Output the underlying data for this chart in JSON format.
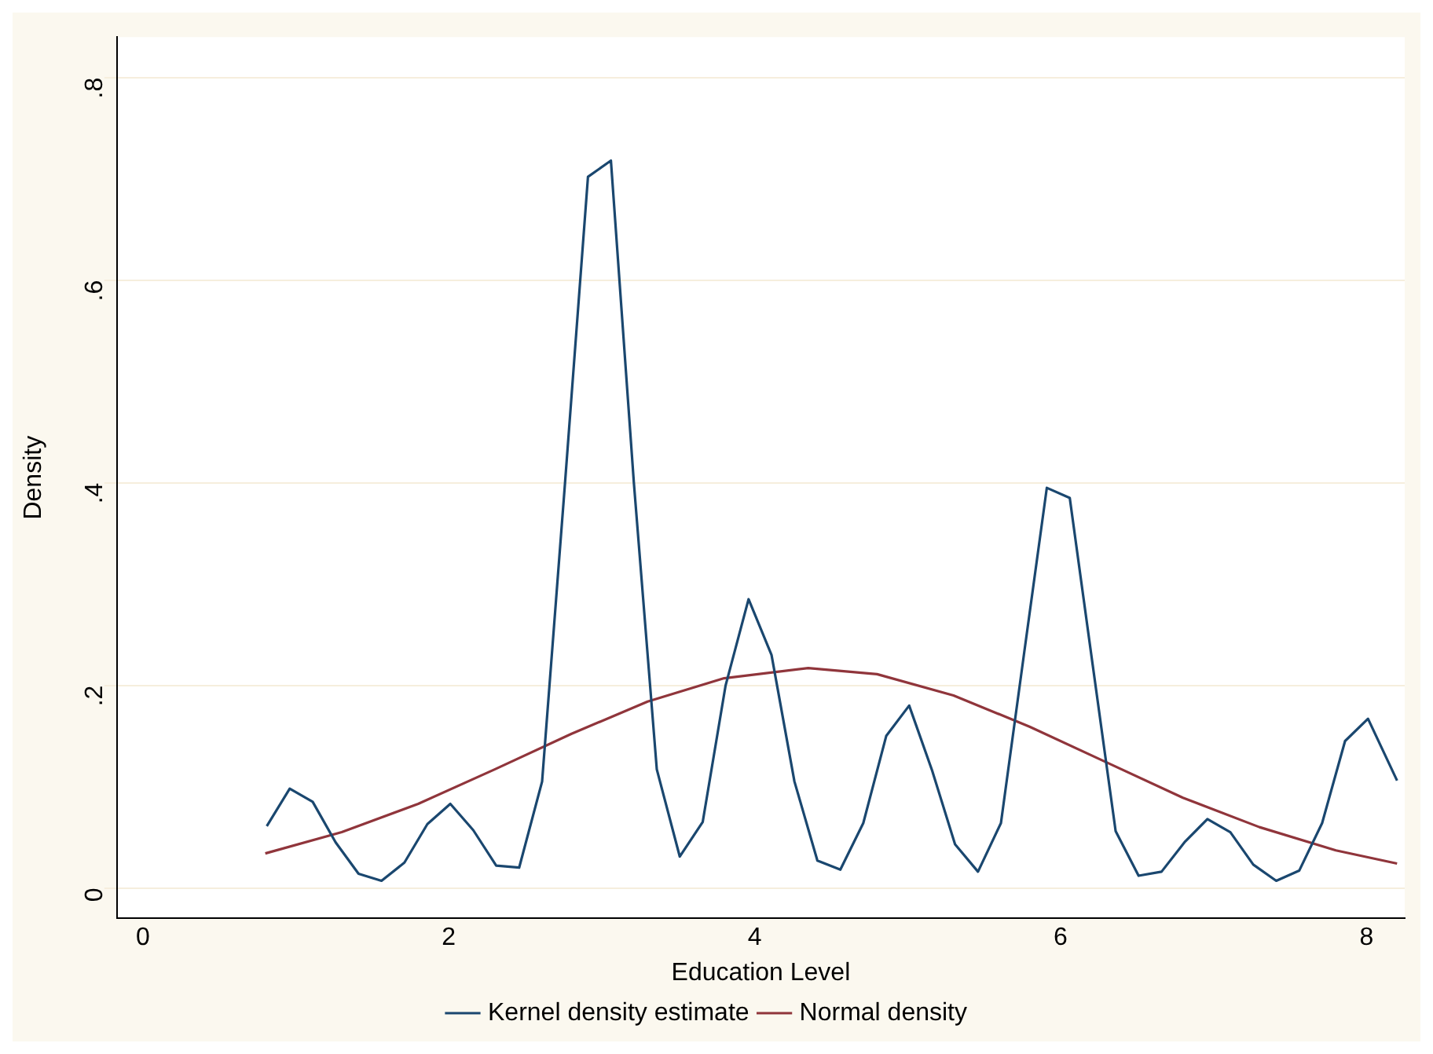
{
  "chart_data": {
    "type": "line",
    "xlabel": "Education Level",
    "ylabel": "Density",
    "xlim": [
      -0.17,
      8.25
    ],
    "xticks": [
      0,
      2,
      4,
      6,
      8
    ],
    "ylim": [
      -0.03,
      0.84
    ],
    "yticks": [
      {
        "value": 0,
        "label": "0"
      },
      {
        "value": 0.2,
        "label": ".2"
      },
      {
        "value": 0.4,
        "label": ".4"
      },
      {
        "value": 0.6,
        "label": ".6"
      },
      {
        "value": 0.8,
        "label": ".8"
      }
    ],
    "grid": "y",
    "legend": "bottom",
    "marker": "none",
    "line_style": "solid",
    "series": [
      {
        "name": "Kernel density estimate",
        "color": "#1a476f",
        "x": [
          0.81,
          0.96,
          1.11,
          1.26,
          1.41,
          1.56,
          1.71,
          1.86,
          2.01,
          2.16,
          2.31,
          2.46,
          2.61,
          2.76,
          2.91,
          3.06,
          3.21,
          3.36,
          3.51,
          3.66,
          3.81,
          3.96,
          4.11,
          4.26,
          4.41,
          4.56,
          4.71,
          4.86,
          5.01,
          5.16,
          5.31,
          5.46,
          5.61,
          5.76,
          5.91,
          6.06,
          6.21,
          6.36,
          6.51,
          6.66,
          6.81,
          6.96,
          7.11,
          7.26,
          7.41,
          7.56,
          7.71,
          7.86,
          8.01,
          8.2
        ],
        "values": [
          0.061,
          0.098,
          0.085,
          0.045,
          0.014,
          0.007,
          0.025,
          0.063,
          0.083,
          0.057,
          0.022,
          0.02,
          0.105,
          0.4,
          0.702,
          0.718,
          0.4,
          0.117,
          0.031,
          0.065,
          0.2,
          0.285,
          0.23,
          0.105,
          0.027,
          0.018,
          0.064,
          0.15,
          0.18,
          0.116,
          0.043,
          0.016,
          0.064,
          0.23,
          0.395,
          0.385,
          0.22,
          0.056,
          0.012,
          0.016,
          0.045,
          0.068,
          0.055,
          0.023,
          0.007,
          0.017,
          0.064,
          0.145,
          0.167,
          0.106
        ]
      },
      {
        "name": "Normal density",
        "color": "#90353b",
        "x": [
          0.8,
          1.3,
          1.8,
          2.3,
          2.8,
          3.3,
          3.8,
          4.35,
          4.8,
          5.3,
          5.8,
          6.3,
          6.8,
          7.3,
          7.8,
          8.2
        ],
        "values": [
          0.034,
          0.055,
          0.083,
          0.117,
          0.152,
          0.184,
          0.207,
          0.217,
          0.211,
          0.19,
          0.159,
          0.124,
          0.089,
          0.06,
          0.037,
          0.024
        ]
      }
    ]
  }
}
